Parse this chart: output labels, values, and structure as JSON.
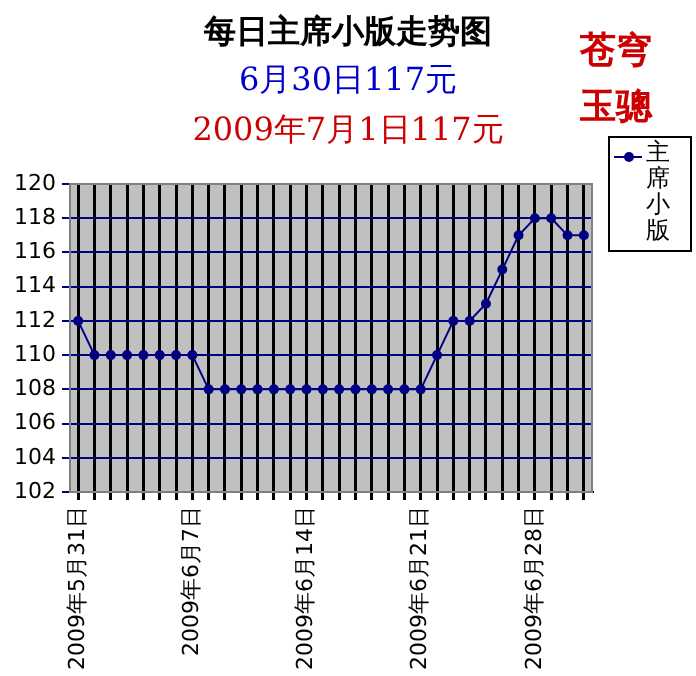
{
  "chart_data": {
    "type": "line",
    "title": "每日主席小版走势图",
    "subtitle": "6月30日117元",
    "annotations": [
      "2009年7月1日117元",
      "苍穹",
      "玉骢"
    ],
    "categories": [
      "2009年5月31日",
      null,
      null,
      null,
      null,
      null,
      null,
      "2009年6月7日",
      null,
      null,
      null,
      null,
      null,
      null,
      "2009年6月14日",
      null,
      null,
      null,
      null,
      null,
      null,
      "2009年6月21日",
      null,
      null,
      null,
      null,
      null,
      null,
      "2009年6月28日",
      null,
      null,
      null
    ],
    "series": [
      {
        "name": "主席小版",
        "color": "#000080",
        "values": [
          112,
          110,
          110,
          110,
          110,
          110,
          110,
          110,
          108,
          108,
          108,
          108,
          108,
          108,
          108,
          108,
          108,
          108,
          108,
          108,
          108,
          108,
          110,
          112,
          112,
          113,
          115,
          117,
          118,
          118,
          117,
          117
        ]
      }
    ],
    "ylim": [
      102,
      120
    ],
    "yticks": [
      102,
      104,
      106,
      108,
      110,
      112,
      114,
      116,
      118,
      120
    ],
    "grid": true,
    "legend": "right",
    "marker": "circle"
  }
}
